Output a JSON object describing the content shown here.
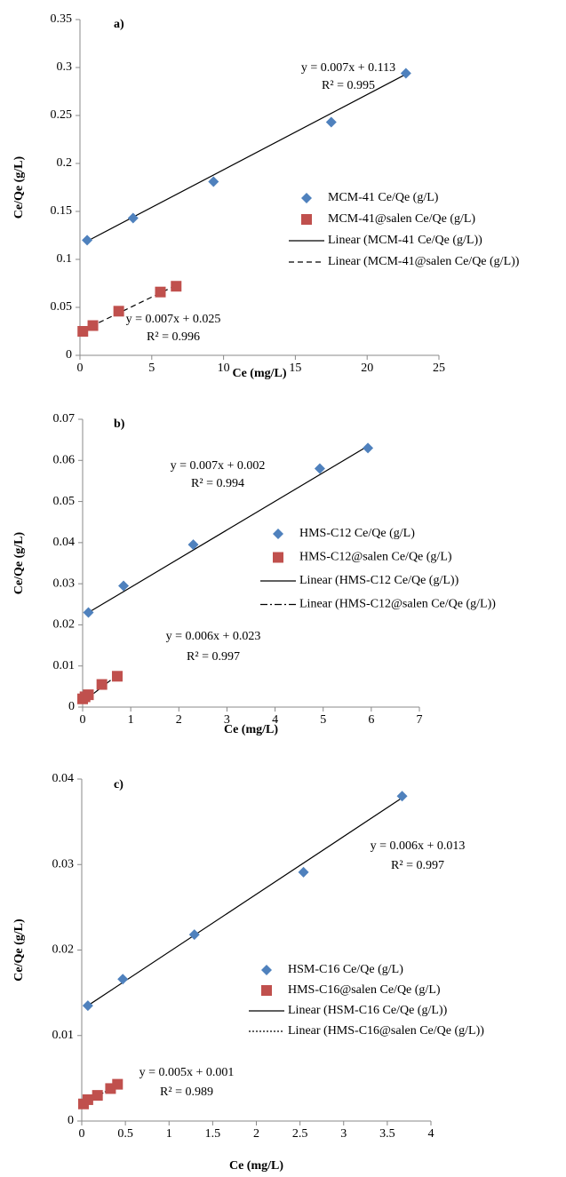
{
  "chart_data": [
    {
      "type": "scatter",
      "title": "a)",
      "x_label": "Ce (mg/L)",
      "y_label": "Ce/Qe (g/L)",
      "xlim": [
        0,
        25
      ],
      "xticks": [
        0,
        5,
        10,
        15,
        20,
        25
      ],
      "ylim": [
        0,
        0.35
      ],
      "yticks": [
        0,
        0.05,
        0.1,
        0.15,
        0.2,
        0.25,
        0.3,
        0.35
      ],
      "series": [
        {
          "name": "MCM-41 Ce/Qe (g/L)",
          "color": "#4f81bd",
          "marker": "diamond",
          "x": [
            0.5,
            3.7,
            9.3,
            17.5,
            22.7
          ],
          "values": [
            0.12,
            0.143,
            0.181,
            0.243,
            0.294
          ]
        },
        {
          "name": "MCM-41@salen Ce/Qe (g/L)",
          "color": "#c0504d",
          "marker": "square",
          "x": [
            0.2,
            0.9,
            2.7,
            5.6,
            6.7
          ],
          "values": [
            0.025,
            0.031,
            0.046,
            0.066,
            0.072
          ]
        },
        {
          "name": "Linear (MCM-41 Ce/Qe (g/L))",
          "color": "#000000",
          "line": "solid",
          "x": [
            0.5,
            22.7
          ],
          "values": [
            0.119,
            0.293
          ]
        },
        {
          "name": "Linear (MCM-41@salen Ce/Qe (g/L))",
          "color": "#000000",
          "line": "dashed",
          "x": [
            0.2,
            6.7
          ],
          "values": [
            0.026,
            0.073
          ]
        }
      ],
      "annotations": [
        "y = 0.007x + 0.113",
        "R² = 0.995",
        "y = 0.007x + 0.025",
        "R² = 0.996"
      ]
    },
    {
      "type": "scatter",
      "title": "b)",
      "x_label": "Ce (mg/L)",
      "y_label": "Ce/Qe (g/L)",
      "xlim": [
        0,
        7
      ],
      "xticks": [
        0,
        1,
        2,
        3,
        4,
        5,
        6,
        7
      ],
      "ylim": [
        0,
        0.07
      ],
      "yticks": [
        0,
        0.01,
        0.02,
        0.03,
        0.04,
        0.05,
        0.06,
        0.07
      ],
      "series": [
        {
          "name": "HMS-C12 Ce/Qe (g/L)",
          "color": "#4f81bd",
          "marker": "diamond",
          "x": [
            0.12,
            0.85,
            2.3,
            4.93,
            5.93
          ],
          "values": [
            0.023,
            0.0295,
            0.0395,
            0.058,
            0.063
          ]
        },
        {
          "name": "HMS-C12@salen Ce/Qe (g/L)",
          "color": "#c0504d",
          "marker": "square",
          "x": [
            0.0,
            0.05,
            0.12,
            0.4,
            0.72
          ],
          "values": [
            0.002,
            0.0025,
            0.003,
            0.0055,
            0.0075
          ]
        },
        {
          "name": "Linear (HMS-C12 Ce/Qe (g/L))",
          "color": "#000000",
          "line": "solid",
          "x": [
            0.12,
            5.93
          ],
          "values": [
            0.023,
            0.0635
          ]
        },
        {
          "name": "Linear (HMS-C12@salen Ce/Qe (g/L))",
          "color": "#000000",
          "line": "dashdot",
          "x": [
            0.0,
            0.72
          ],
          "values": [
            0.0012,
            0.0078
          ]
        }
      ],
      "annotations": [
        "y = 0.007x + 0.002",
        "R² = 0.994",
        "y = 0.006x + 0.023",
        "R² = 0.997"
      ]
    },
    {
      "type": "scatter",
      "title": "c)",
      "x_label": "Ce (mg/L)",
      "y_label": "Ce/Qe (g/L)",
      "xlim": [
        0,
        4
      ],
      "xticks": [
        0,
        0.5,
        1,
        1.5,
        2,
        2.5,
        3,
        3.5,
        4
      ],
      "ylim": [
        0,
        0.04
      ],
      "yticks": [
        0,
        0.01,
        0.02,
        0.03,
        0.04
      ],
      "series": [
        {
          "name": "HSM-C16 Ce/Qe (g/L)",
          "color": "#4f81bd",
          "marker": "diamond",
          "x": [
            0.07,
            0.47,
            1.29,
            2.54,
            3.67
          ],
          "values": [
            0.0135,
            0.0166,
            0.0218,
            0.0291,
            0.038
          ]
        },
        {
          "name": "HMS-C16@salen Ce/Qe (g/L)",
          "color": "#c0504d",
          "marker": "square",
          "x": [
            0.02,
            0.07,
            0.18,
            0.33,
            0.41
          ],
          "values": [
            0.002,
            0.0025,
            0.003,
            0.0038,
            0.0043
          ]
        },
        {
          "name": "Linear (HSM-C16 Ce/Qe (g/L))",
          "color": "#000000",
          "line": "solid",
          "x": [
            0.07,
            3.67
          ],
          "values": [
            0.0135,
            0.0378
          ]
        },
        {
          "name": "Linear (HMS-C16@salen Ce/Qe (g/L))",
          "color": "#000000",
          "line": "dotted",
          "x": [
            0.02,
            0.41
          ],
          "values": [
            0.0019,
            0.0043
          ]
        }
      ],
      "annotations": [
        "y = 0.006x + 0.013",
        "R² = 0.997",
        "y = 0.005x + 0.001",
        "R² = 0.989"
      ]
    }
  ]
}
